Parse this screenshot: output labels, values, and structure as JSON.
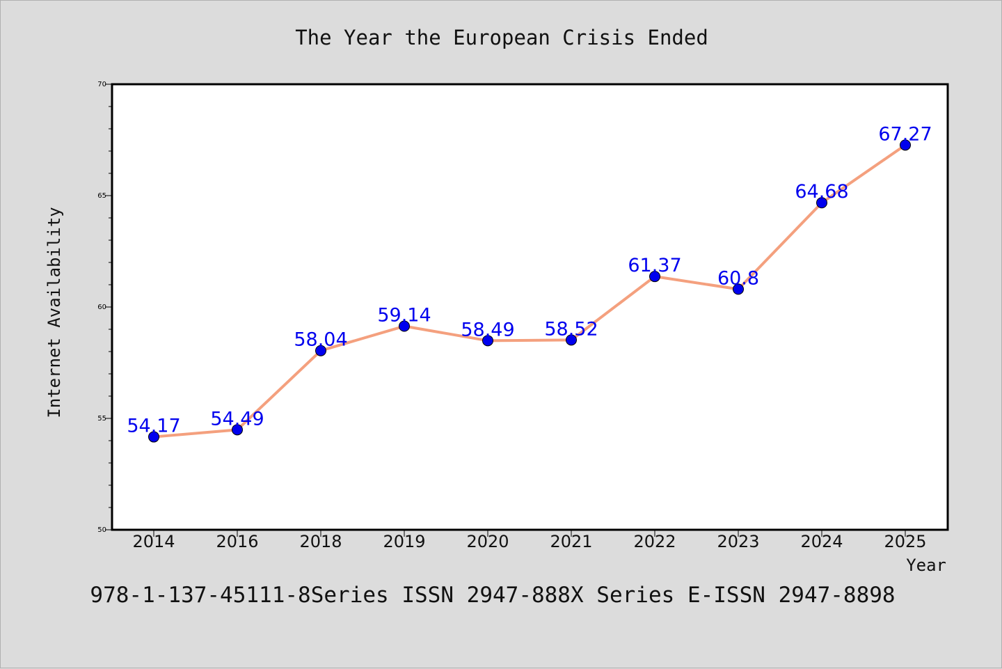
{
  "chart_data": {
    "type": "line",
    "title": "The Year the European Crisis Ended",
    "xlabel": "Year",
    "ylabel": "Internet Availability",
    "categories": [
      "2014",
      "2016",
      "2018",
      "2019",
      "2020",
      "2021",
      "2022",
      "2023",
      "2024",
      "2025"
    ],
    "values": [
      54.17,
      54.49,
      58.04,
      59.14,
      58.49,
      58.52,
      61.37,
      60.8,
      64.68,
      67.27
    ],
    "data_labels": [
      "54.17",
      "54.49",
      "58.04",
      "59.14",
      "58.49",
      "58.52",
      "61.37",
      "60.8",
      "64.68",
      "67.27"
    ],
    "ylim": [
      50,
      70
    ],
    "yticks": [
      "50",
      "55",
      "60",
      "65",
      "70"
    ],
    "grid": false,
    "line_color": "#f4a07e",
    "marker_color": "#0000ee",
    "label_color": "#0000ee",
    "background_color": "#ffffff",
    "figure_background": "#dcdcdc"
  },
  "footer": {
    "text": "978-1-137-45111-8Series ISSN 2947-888X Series E-ISSN 2947-8898"
  }
}
